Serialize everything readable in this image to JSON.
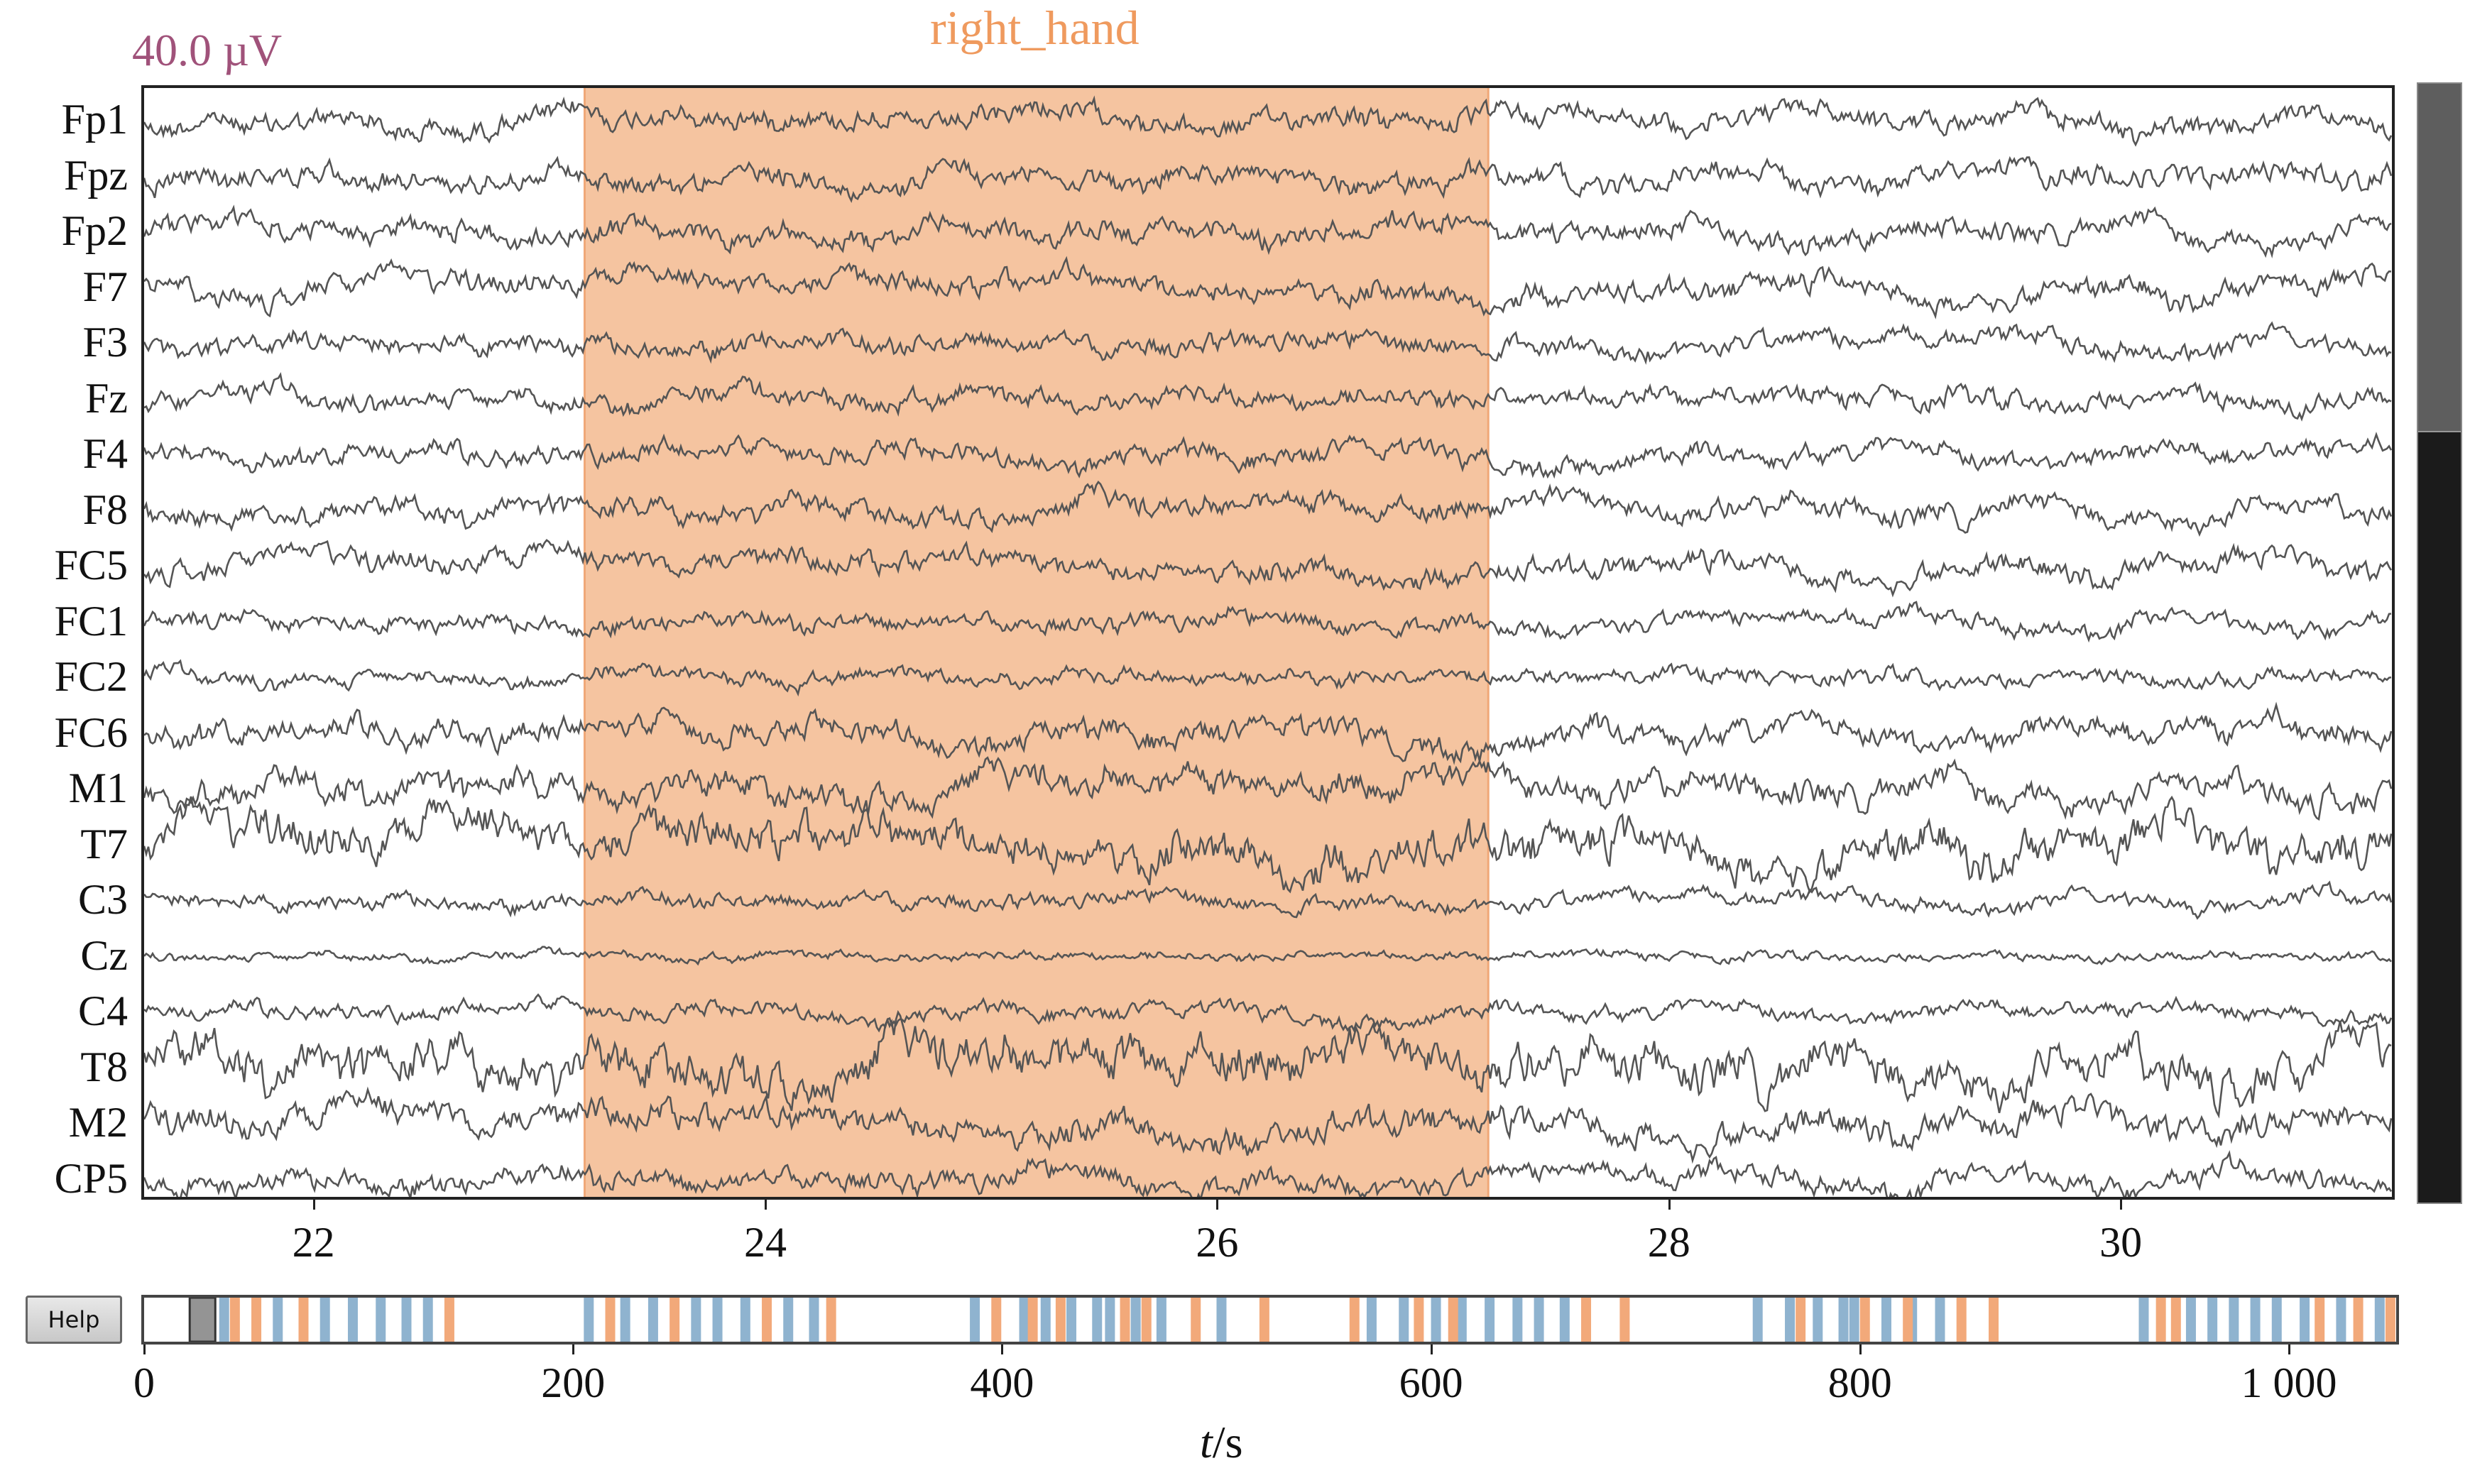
{
  "scale_label": "40.0 µV",
  "annotation_label": "right_hand",
  "channels": [
    "Fp1",
    "Fpz",
    "Fp2",
    "F7",
    "F3",
    "Fz",
    "F4",
    "F8",
    "FC5",
    "FC1",
    "FC2",
    "FC6",
    "M1",
    "T7",
    "C3",
    "Cz",
    "C4",
    "T8",
    "M2",
    "CP5"
  ],
  "channel_amplitude": [
    1.0,
    1.0,
    1.0,
    1.0,
    0.9,
    0.9,
    0.9,
    1.0,
    1.0,
    0.8,
    0.7,
    1.1,
    1.3,
    1.8,
    0.7,
    0.4,
    0.7,
    2.0,
    1.3,
    1.0
  ],
  "main_axis": {
    "time_range": [
      21.25,
      31.2
    ],
    "ticks": [
      22,
      24,
      26,
      28,
      30
    ],
    "tick_labels": [
      "22",
      "24",
      "26",
      "28",
      "30"
    ]
  },
  "annotation_span": [
    23.2,
    27.2
  ],
  "annotation_color": "#f5c4a0",
  "trace_color": "#555555",
  "help_label": "Help",
  "overview_axis": {
    "range": [
      0,
      1050
    ],
    "ticks": [
      0,
      200,
      400,
      600,
      800,
      1000
    ],
    "tick_labels": [
      "0",
      "200",
      "400",
      "600",
      "800",
      "1 000"
    ],
    "xlabel_italic": "t",
    "xlabel_rest": "/s",
    "view_window": [
      21.25,
      31.2
    ],
    "marker_color_blue": "#8fb3cf",
    "marker_color_orange": "#f2a97a",
    "markers_blue": [
      35,
      60,
      82,
      95,
      108,
      120,
      130,
      205,
      222,
      235,
      255,
      265,
      278,
      298,
      310,
      385,
      408,
      418,
      430,
      442,
      448,
      460,
      472,
      500,
      570,
      585,
      600,
      612,
      625,
      638,
      648,
      660,
      750,
      765,
      778,
      790,
      795,
      810,
      822,
      835,
      930,
      952,
      962,
      972,
      982,
      992,
      1005,
      1022,
      1040
    ],
    "markers_orange": [
      40,
      50,
      72,
      140,
      215,
      245,
      288,
      318,
      395,
      412,
      425,
      455,
      465,
      488,
      520,
      562,
      592,
      608,
      670,
      688,
      770,
      800,
      820,
      845,
      860,
      938,
      945,
      1012,
      1030,
      1045
    ]
  }
}
